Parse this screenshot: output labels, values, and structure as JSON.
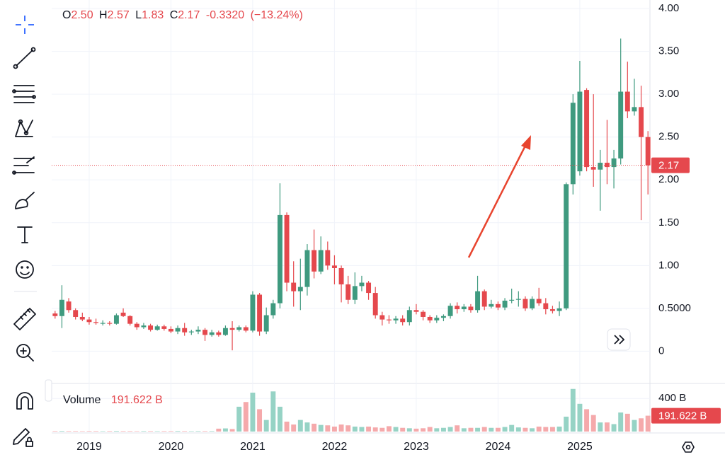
{
  "chart_data": {
    "type": "candlestick",
    "ohlc_legend": {
      "o_label": "O",
      "o": "2.50",
      "h_label": "H",
      "h": "2.57",
      "l_label": "L",
      "l": "1.83",
      "c_label": "C",
      "c": "2.17",
      "change": "-0.3320",
      "change_pct": "(−13.24%)"
    },
    "categories": [
      null,
      null,
      null,
      null,
      null,
      "2019",
      null,
      null,
      null,
      null,
      null,
      null,
      null,
      null,
      null,
      null,
      null,
      "2020",
      null,
      null,
      null,
      null,
      null,
      null,
      null,
      null,
      null,
      null,
      null,
      "2021",
      null,
      null,
      null,
      null,
      null,
      null,
      null,
      null,
      null,
      null,
      null,
      "2022",
      null,
      null,
      null,
      null,
      null,
      null,
      null,
      null,
      null,
      null,
      null,
      "2023",
      null,
      null,
      null,
      null,
      null,
      null,
      null,
      null,
      null,
      null,
      null,
      "2024",
      null,
      null,
      null,
      null,
      null,
      null,
      null,
      null,
      null,
      null,
      null,
      "2025",
      null,
      null,
      null,
      null,
      null,
      null,
      null,
      null,
      null,
      null
    ],
    "open": [
      0.44,
      0.41,
      0.58,
      0.48,
      0.4,
      0.37,
      0.34,
      0.32,
      0.33,
      0.32,
      0.45,
      0.41,
      0.32,
      0.28,
      0.3,
      0.25,
      0.29,
      0.26,
      0.23,
      0.27,
      0.22,
      0.23,
      0.25,
      0.19,
      0.22,
      0.19,
      0.27,
      0.25,
      0.28,
      0.24,
      0.66,
      0.23,
      0.42,
      0.56,
      1.59,
      0.8,
      0.7,
      0.75,
      1.18,
      0.93,
      1.18,
      1.0,
      0.97,
      0.78,
      0.6,
      0.76,
      0.8,
      0.68,
      0.42,
      0.37,
      0.36,
      0.38,
      0.34,
      0.48,
      0.46,
      0.4,
      0.36,
      0.39,
      0.41,
      0.53,
      0.49,
      0.52,
      0.48,
      0.7,
      0.52,
      0.55,
      0.51,
      0.59,
      0.6,
      0.61,
      0.5,
      0.61,
      0.56,
      0.49,
      0.47,
      0.5,
      1.95,
      2.1,
      3.05,
      2.15,
      2.12,
      2.2,
      2.15,
      2.25,
      3.03,
      2.8,
      2.85,
      2.5
    ],
    "high": [
      0.47,
      0.77,
      0.62,
      0.5,
      0.45,
      0.4,
      0.38,
      0.36,
      0.35,
      0.44,
      0.5,
      0.42,
      0.34,
      0.33,
      0.32,
      0.31,
      0.31,
      0.29,
      0.3,
      0.33,
      0.25,
      0.29,
      0.27,
      0.25,
      0.24,
      0.3,
      0.35,
      0.3,
      0.3,
      0.7,
      0.68,
      0.51,
      0.6,
      1.96,
      1.62,
      1.05,
      1.08,
      1.25,
      1.42,
      1.34,
      1.28,
      1.12,
      1.0,
      0.88,
      0.92,
      0.88,
      0.82,
      0.75,
      0.46,
      0.42,
      0.41,
      0.42,
      0.52,
      0.55,
      0.48,
      0.42,
      0.42,
      0.43,
      0.56,
      0.57,
      0.55,
      0.55,
      0.88,
      0.72,
      0.6,
      0.58,
      0.62,
      0.73,
      0.7,
      0.64,
      0.64,
      0.74,
      0.62,
      0.53,
      0.58,
      1.97,
      3.0,
      3.39,
      3.07,
      3.0,
      2.35,
      2.7,
      2.35,
      3.65,
      3.38,
      3.18,
      3.1,
      2.57
    ],
    "low": [
      0.38,
      0.27,
      0.45,
      0.37,
      0.35,
      0.31,
      0.31,
      0.3,
      0.3,
      0.31,
      0.4,
      0.3,
      0.25,
      0.26,
      0.23,
      0.24,
      0.24,
      0.21,
      0.2,
      0.18,
      0.19,
      0.2,
      0.12,
      0.17,
      0.17,
      0.18,
      0.01,
      0.23,
      0.22,
      0.22,
      0.18,
      0.2,
      0.38,
      0.5,
      0.7,
      0.52,
      0.48,
      0.65,
      0.85,
      0.9,
      0.95,
      0.78,
      0.57,
      0.55,
      0.55,
      0.7,
      0.6,
      0.38,
      0.3,
      0.32,
      0.32,
      0.3,
      0.3,
      0.43,
      0.36,
      0.33,
      0.33,
      0.35,
      0.38,
      0.44,
      0.46,
      0.45,
      0.45,
      0.48,
      0.5,
      0.48,
      0.48,
      0.56,
      0.52,
      0.47,
      0.48,
      0.53,
      0.43,
      0.44,
      0.41,
      0.48,
      1.83,
      2.05,
      2.1,
      1.92,
      1.64,
      1.95,
      1.9,
      2.18,
      2.72,
      2.75,
      1.53,
      1.83
    ],
    "close": [
      0.41,
      0.6,
      0.48,
      0.4,
      0.37,
      0.34,
      0.33,
      0.33,
      0.32,
      0.42,
      0.41,
      0.32,
      0.28,
      0.3,
      0.25,
      0.29,
      0.26,
      0.23,
      0.27,
      0.22,
      0.23,
      0.25,
      0.19,
      0.22,
      0.19,
      0.27,
      0.25,
      0.28,
      0.24,
      0.66,
      0.23,
      0.42,
      0.56,
      1.59,
      0.8,
      0.7,
      0.75,
      1.18,
      0.93,
      1.18,
      1.0,
      0.97,
      0.78,
      0.6,
      0.76,
      0.8,
      0.68,
      0.42,
      0.37,
      0.36,
      0.38,
      0.34,
      0.48,
      0.46,
      0.4,
      0.36,
      0.39,
      0.41,
      0.53,
      0.49,
      0.52,
      0.48,
      0.7,
      0.52,
      0.55,
      0.51,
      0.59,
      0.6,
      0.61,
      0.5,
      0.61,
      0.56,
      0.49,
      0.47,
      0.5,
      1.95,
      2.9,
      3.03,
      2.15,
      2.12,
      2.2,
      2.15,
      2.25,
      3.03,
      2.8,
      2.85,
      2.5,
      2.17
    ],
    "up_color": "#3f9a7f",
    "down_color": "#e5484d",
    "ylim": [
      -0.36,
      4.1
    ],
    "yticks": [
      0,
      {
        "value": 0.5,
        "label": "0.5000"
      },
      {
        "value": 1,
        "label": "1.00"
      },
      {
        "value": 1.5,
        "label": "1.50"
      },
      {
        "value": 2,
        "label": "2.00"
      },
      {
        "value": 2.5,
        "label": "2.50"
      },
      {
        "value": 3,
        "label": "3.00"
      },
      {
        "value": 3.5,
        "label": "3.50"
      },
      {
        "value": 4,
        "label": "4.00"
      }
    ],
    "last_price": 2.17,
    "grid": true,
    "volume": {
      "name": "Volume",
      "last_label": "191.622 B",
      "up_color": "#96d3c5",
      "down_color": "#f5a9ab",
      "values": [
        6,
        7,
        6,
        6,
        5,
        6,
        6,
        5,
        6,
        7,
        6,
        6,
        5,
        6,
        6,
        5,
        6,
        6,
        7,
        6,
        5,
        6,
        6,
        6,
        35,
        38,
        30,
        300,
        357,
        470,
        270,
        140,
        485,
        300,
        120,
        85,
        140,
        110,
        95,
        80,
        75,
        60,
        85,
        75,
        60,
        55,
        60,
        50,
        45,
        65,
        55,
        45,
        40,
        35,
        40,
        55,
        40,
        45,
        55,
        75,
        40,
        45,
        45,
        55,
        45,
        45,
        55,
        80,
        50,
        45,
        40,
        60,
        55,
        55,
        60,
        180,
        515,
        335,
        270,
        200,
        110,
        110,
        90,
        230,
        215,
        140,
        160,
        191.622
      ],
      "ylim": [
        0,
        530
      ],
      "yticks": [
        {
          "value": 400,
          "label": "400 B"
        }
      ]
    }
  }
}
